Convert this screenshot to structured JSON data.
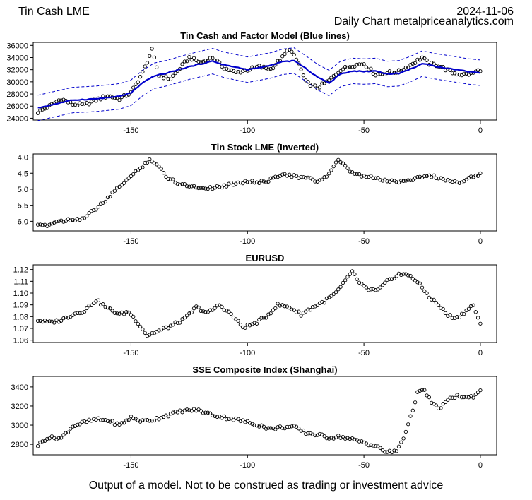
{
  "header": {
    "title": "Tin Cash LME",
    "date": "2024-11-06",
    "subtitle": "Daily Chart metalpriceanalytics.com"
  },
  "footer": {
    "disclaimer": "Output of a model. Not to be construed as trading or investment advice"
  },
  "colors": {
    "model": "#0000cc",
    "band": "#0000cc",
    "points": "#000000",
    "frame": "#000000"
  },
  "chart_data": [
    {
      "type": "scatter",
      "title": "Tin Cash and Factor Model (Blue lines)",
      "x_ticks": [
        -150,
        -100,
        -50,
        0
      ],
      "xlim": [
        -192,
        7
      ],
      "ylim": [
        23700,
        36500
      ],
      "y_ticks": [
        24000,
        26000,
        28000,
        30000,
        32000,
        34000,
        36000
      ],
      "series": [
        {
          "name": "Tin Cash LME",
          "kind": "points",
          "knots": [
            [
              -190,
              25000
            ],
            [
              -185,
              26000
            ],
            [
              -180,
              27200
            ],
            [
              -175,
              26300
            ],
            [
              -170,
              26200
            ],
            [
              -165,
              27000
            ],
            [
              -160,
              27700
            ],
            [
              -155,
              27200
            ],
            [
              -150,
              28200
            ],
            [
              -145,
              31500
            ],
            [
              -141,
              35200
            ],
            [
              -138,
              31000
            ],
            [
              -133,
              30500
            ],
            [
              -125,
              34000
            ],
            [
              -120,
              33200
            ],
            [
              -115,
              34000
            ],
            [
              -110,
              32300
            ],
            [
              -105,
              31500
            ],
            [
              -100,
              32000
            ],
            [
              -95,
              32500
            ],
            [
              -90,
              32100
            ],
            [
              -85,
              34000
            ],
            [
              -82,
              35500
            ],
            [
              -78,
              33000
            ],
            [
              -75,
              30000
            ],
            [
              -70,
              29000
            ],
            [
              -65,
              30200
            ],
            [
              -60,
              32000
            ],
            [
              -55,
              32700
            ],
            [
              -50,
              33000
            ],
            [
              -45,
              31200
            ],
            [
              -40,
              31500
            ],
            [
              -35,
              31700
            ],
            [
              -30,
              32800
            ],
            [
              -25,
              34000
            ],
            [
              -22,
              33000
            ],
            [
              -18,
              32700
            ],
            [
              -12,
              31500
            ],
            [
              -8,
              31200
            ],
            [
              -4,
              31300
            ],
            [
              0,
              32000
            ]
          ]
        },
        {
          "name": "Factor Model",
          "kind": "line",
          "knots": [
            [
              -190,
              25700
            ],
            [
              -175,
              27000
            ],
            [
              -165,
              27200
            ],
            [
              -155,
              27600
            ],
            [
              -150,
              28200
            ],
            [
              -145,
              29800
            ],
            [
              -140,
              31000
            ],
            [
              -135,
              31400
            ],
            [
              -125,
              32500
            ],
            [
              -115,
              33400
            ],
            [
              -110,
              32800
            ],
            [
              -100,
              32000
            ],
            [
              -90,
              32700
            ],
            [
              -85,
              33300
            ],
            [
              -80,
              33500
            ],
            [
              -75,
              32200
            ],
            [
              -70,
              30800
            ],
            [
              -65,
              29800
            ],
            [
              -60,
              31300
            ],
            [
              -55,
              31800
            ],
            [
              -50,
              31700
            ],
            [
              -45,
              31800
            ],
            [
              -40,
              31300
            ],
            [
              -35,
              31400
            ],
            [
              -30,
              32100
            ],
            [
              -25,
              33000
            ],
            [
              -20,
              32600
            ],
            [
              -15,
              32300
            ],
            [
              -10,
              32000
            ],
            [
              -5,
              31700
            ],
            [
              0,
              31500
            ]
          ]
        },
        {
          "name": "Upper band",
          "kind": "dashed",
          "offset": 2100
        },
        {
          "name": "Lower band",
          "kind": "dashed",
          "offset": -2100
        }
      ]
    },
    {
      "type": "scatter",
      "title": "Tin Stock LME (Inverted)",
      "x_ticks": [
        -150,
        -100,
        -50,
        0
      ],
      "xlim": [
        -192,
        7
      ],
      "ylim": [
        6.3,
        3.9
      ],
      "y_ticks": [
        4.0,
        4.5,
        5.0,
        5.5,
        6.0
      ],
      "y_tick_labels": [
        "4.0",
        "4.5",
        "5.0",
        "5.5",
        "6.0"
      ],
      "series": [
        {
          "name": "Tin Stock",
          "kind": "points",
          "knots": [
            [
              -190,
              6.15
            ],
            [
              -185,
              6.1
            ],
            [
              -182,
              6.0
            ],
            [
              -176,
              5.95
            ],
            [
              -170,
              5.9
            ],
            [
              -165,
              5.6
            ],
            [
              -160,
              5.3
            ],
            [
              -155,
              4.9
            ],
            [
              -150,
              4.6
            ],
            [
              -146,
              4.35
            ],
            [
              -142,
              4.05
            ],
            [
              -138,
              4.3
            ],
            [
              -135,
              4.6
            ],
            [
              -130,
              4.8
            ],
            [
              -125,
              4.9
            ],
            [
              -120,
              4.95
            ],
            [
              -115,
              4.95
            ],
            [
              -110,
              4.9
            ],
            [
              -105,
              4.8
            ],
            [
              -100,
              4.75
            ],
            [
              -95,
              4.8
            ],
            [
              -90,
              4.7
            ],
            [
              -85,
              4.5
            ],
            [
              -80,
              4.6
            ],
            [
              -75,
              4.65
            ],
            [
              -70,
              4.75
            ],
            [
              -66,
              4.6
            ],
            [
              -61,
              4.1
            ],
            [
              -58,
              4.3
            ],
            [
              -55,
              4.5
            ],
            [
              -50,
              4.6
            ],
            [
              -45,
              4.65
            ],
            [
              -40,
              4.75
            ],
            [
              -35,
              4.75
            ],
            [
              -30,
              4.7
            ],
            [
              -25,
              4.6
            ],
            [
              -20,
              4.6
            ],
            [
              -15,
              4.7
            ],
            [
              -10,
              4.8
            ],
            [
              -5,
              4.65
            ],
            [
              0,
              4.55
            ]
          ]
        }
      ]
    },
    {
      "type": "scatter",
      "title": "EURUSD",
      "x_ticks": [
        -150,
        -100,
        -50,
        0
      ],
      "xlim": [
        -192,
        7
      ],
      "ylim": [
        1.058,
        1.124
      ],
      "y_ticks": [
        1.06,
        1.07,
        1.08,
        1.09,
        1.1,
        1.11,
        1.12
      ],
      "y_tick_labels": [
        "1.06",
        "1.07",
        "1.08",
        "1.09",
        "1.10",
        "1.11",
        "1.12"
      ],
      "series": [
        {
          "name": "EURUSD",
          "kind": "points",
          "knots": [
            [
              -190,
              1.077
            ],
            [
              -185,
              1.075
            ],
            [
              -180,
              1.077
            ],
            [
              -175,
              1.082
            ],
            [
              -170,
              1.085
            ],
            [
              -165,
              1.094
            ],
            [
              -160,
              1.087
            ],
            [
              -155,
              1.082
            ],
            [
              -151,
              1.084
            ],
            [
              -147,
              1.075
            ],
            [
              -143,
              1.064
            ],
            [
              -138,
              1.068
            ],
            [
              -133,
              1.072
            ],
            [
              -127,
              1.078
            ],
            [
              -122,
              1.088
            ],
            [
              -117,
              1.083
            ],
            [
              -112,
              1.09
            ],
            [
              -107,
              1.082
            ],
            [
              -102,
              1.071
            ],
            [
              -97,
              1.074
            ],
            [
              -92,
              1.08
            ],
            [
              -87,
              1.09
            ],
            [
              -82,
              1.088
            ],
            [
              -77,
              1.082
            ],
            [
              -72,
              1.088
            ],
            [
              -67,
              1.093
            ],
            [
              -62,
              1.1
            ],
            [
              -58,
              1.11
            ],
            [
              -55,
              1.119
            ],
            [
              -52,
              1.108
            ],
            [
              -48,
              1.103
            ],
            [
              -44,
              1.102
            ],
            [
              -40,
              1.11
            ],
            [
              -35,
              1.116
            ],
            [
              -30,
              1.115
            ],
            [
              -26,
              1.107
            ],
            [
              -22,
              1.097
            ],
            [
              -18,
              1.09
            ],
            [
              -14,
              1.081
            ],
            [
              -10,
              1.079
            ],
            [
              -6,
              1.085
            ],
            [
              -3,
              1.09
            ],
            [
              0,
              1.073
            ]
          ]
        }
      ]
    },
    {
      "type": "scatter",
      "title": "SSE Composite Index (Shanghai)",
      "x_ticks": [
        -150,
        -100,
        -50,
        0
      ],
      "xlim": [
        -192,
        7
      ],
      "ylim": [
        2690,
        3510
      ],
      "y_ticks": [
        2800,
        3000,
        3200,
        3400
      ],
      "series": [
        {
          "name": "SSE Composite",
          "kind": "points",
          "knots": [
            [
              -190,
              2790
            ],
            [
              -186,
              2870
            ],
            [
              -180,
              2865
            ],
            [
              -175,
              2990
            ],
            [
              -170,
              3030
            ],
            [
              -165,
              3060
            ],
            [
              -160,
              3050
            ],
            [
              -155,
              3000
            ],
            [
              -150,
              3080
            ],
            [
              -145,
              3040
            ],
            [
              -140,
              3060
            ],
            [
              -135,
              3100
            ],
            [
              -128,
              3150
            ],
            [
              -122,
              3160
            ],
            [
              -118,
              3130
            ],
            [
              -112,
              3090
            ],
            [
              -105,
              3060
            ],
            [
              -100,
              3030
            ],
            [
              -95,
              3000
            ],
            [
              -90,
              2960
            ],
            [
              -85,
              2980
            ],
            [
              -80,
              2980
            ],
            [
              -75,
              2920
            ],
            [
              -70,
              2900
            ],
            [
              -65,
              2870
            ],
            [
              -60,
              2880
            ],
            [
              -55,
              2850
            ],
            [
              -50,
              2820
            ],
            [
              -45,
              2780
            ],
            [
              -40,
              2715
            ],
            [
              -36,
              2730
            ],
            [
              -33,
              2870
            ],
            [
              -30,
              3080
            ],
            [
              -27,
              3340
            ],
            [
              -24,
              3360
            ],
            [
              -21,
              3240
            ],
            [
              -18,
              3170
            ],
            [
              -14,
              3260
            ],
            [
              -10,
              3310
            ],
            [
              -6,
              3280
            ],
            [
              -3,
              3300
            ],
            [
              0,
              3380
            ]
          ]
        }
      ]
    }
  ]
}
